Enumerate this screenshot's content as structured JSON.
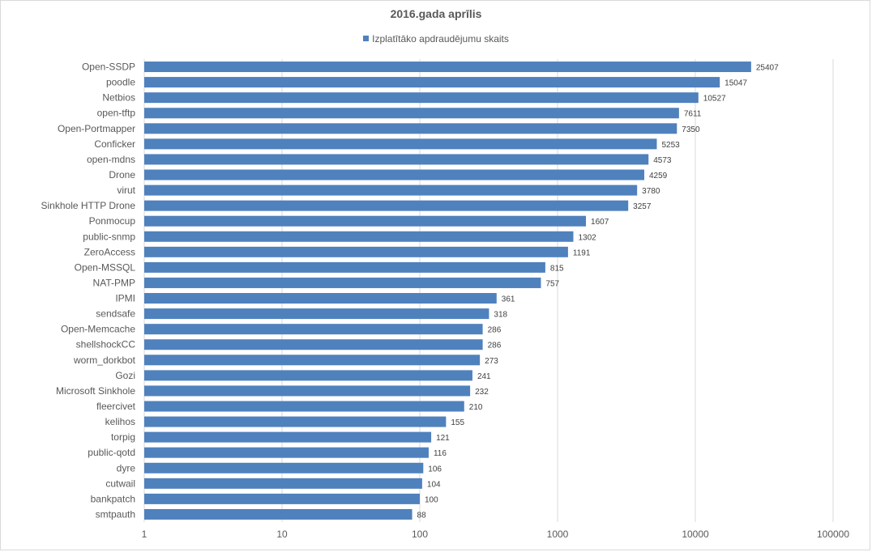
{
  "chart_data": {
    "type": "bar",
    "orientation": "horizontal",
    "title": "2016.gada aprīlis",
    "legend": {
      "placement": "top",
      "label": "Izplatītāko apdraudējumu skaits"
    },
    "x_scale": "log",
    "xlim": [
      1,
      100000
    ],
    "x_ticks": [
      "1",
      "10",
      "100",
      "1000",
      "10000",
      "100000"
    ],
    "grid": true,
    "series_color": "#4f81bd",
    "categories": [
      "Open-SSDP",
      "poodle",
      "Netbios",
      "open-tftp",
      "Open-Portmapper",
      "Conficker",
      "open-mdns",
      "Drone",
      "virut",
      "Sinkhole HTTP Drone",
      "Ponmocup",
      "public-snmp",
      "ZeroAccess",
      "Open-MSSQL",
      "NAT-PMP",
      "IPMI",
      "sendsafe",
      "Open-Memcache",
      "shellshockCC",
      "worm_dorkbot",
      "Gozi",
      "Microsoft Sinkhole",
      "fleercivet",
      "kelihos",
      "torpig",
      "public-qotd",
      "dyre",
      "cutwail",
      "bankpatch",
      "smtpauth"
    ],
    "series": [
      {
        "name": "Izplatītāko apdraudējumu skaits",
        "values": [
          25407,
          15047,
          10527,
          7611,
          7350,
          5253,
          4573,
          4259,
          3780,
          3257,
          1607,
          1302,
          1191,
          815,
          757,
          361,
          318,
          286,
          286,
          273,
          241,
          232,
          210,
          155,
          121,
          116,
          106,
          104,
          100,
          88
        ]
      }
    ]
  }
}
